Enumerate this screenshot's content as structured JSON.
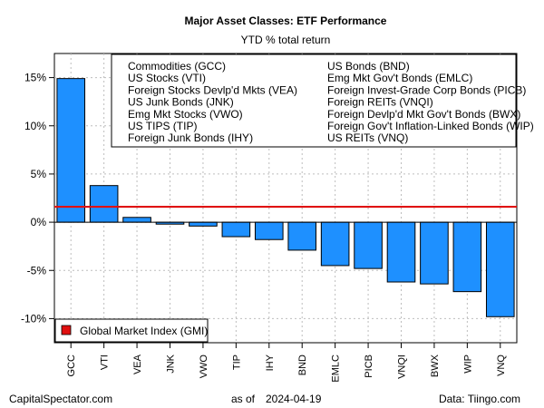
{
  "chart_data": {
    "type": "bar",
    "title": "Major Asset Classes: ETF Performance",
    "subtitle": "YTD % total return",
    "categories": [
      "GCC",
      "VTI",
      "VEA",
      "JNK",
      "VWO",
      "TIP",
      "IHY",
      "BND",
      "EMLC",
      "PICB",
      "VNQI",
      "BWX",
      "WIP",
      "VNQ"
    ],
    "values": [
      14.9,
      3.8,
      0.5,
      -0.2,
      -0.4,
      -1.5,
      -1.8,
      -2.9,
      -4.5,
      -4.8,
      -6.2,
      -6.4,
      -7.2,
      -9.8
    ],
    "ylim": [
      -12.5,
      17.5
    ],
    "y_ticks": [
      -10,
      -5,
      0,
      5,
      10,
      15
    ],
    "y_tick_labels": [
      "-10%",
      "-5%",
      "0%",
      "5%",
      "10%",
      "15%"
    ],
    "xlabel": "",
    "ylabel": "",
    "grid": true,
    "bar_color": "#1e90ff",
    "reference_line": {
      "name": "Global Market Index (GMI)",
      "value": 1.6,
      "color": "#e01010"
    },
    "descriptions_legend": {
      "placement": "top-right",
      "left_column": [
        "Commodities (GCC)",
        "US Stocks (VTI)",
        "Foreign Stocks Devlp'd Mkts (VEA)",
        "US Junk Bonds (JNK)",
        "Emg Mkt Stocks (VWO)",
        "US TIPS (TIP)",
        "Foreign Junk Bonds (IHY)"
      ],
      "right_column": [
        "US Bonds (BND)",
        "Emg Mkt Gov't Bonds (EMLC)",
        "Foreign Invest-Grade Corp Bonds (PICB)",
        "Foreign REITs (VNQI)",
        "Foreign Devlp'd Mkt Gov't Bonds (BWX)",
        "Foreign Gov't Inflation-Linked Bonds (WIP)",
        "US REITs (VNQ)"
      ]
    },
    "gmi_legend": {
      "placement": "bottom-left",
      "label": "Global Market Index (GMI)"
    }
  },
  "footer": {
    "source_left": "CapitalSpectator.com",
    "date_prefix": "as of",
    "date": "2024-04-19",
    "source_right": "Data: Tiingo.com"
  }
}
